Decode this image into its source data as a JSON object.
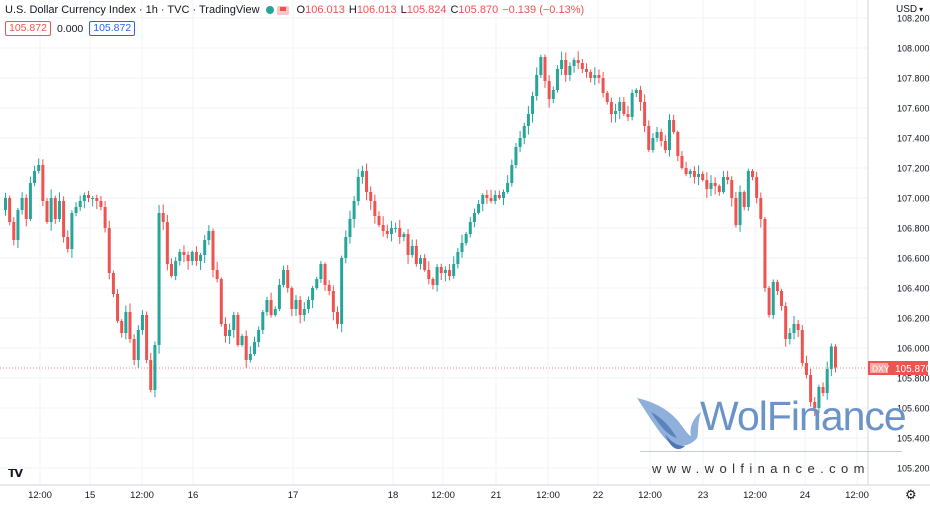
{
  "legend": {
    "title": "U.S. Dollar Currency Index · 1h · TVC · TradingView",
    "open_label": "O",
    "open": "106.013",
    "high_label": "H",
    "high": "106.013",
    "low_label": "L",
    "low": "105.824",
    "close_label": "C",
    "close": "105.870",
    "change": "−0.139 (−0.13%)"
  },
  "values_row": {
    "sell": "105.872",
    "spread": "0.000",
    "buy": "105.872"
  },
  "currency_unit": "USD",
  "price_tag": {
    "symbol": "DXY",
    "value": "105.870"
  },
  "watermark": {
    "brand": "WolFinance",
    "url": "www.wolfinance.com"
  },
  "colors": {
    "up": "#26a69a",
    "down": "#ef5350",
    "grid": "#f0f3fa",
    "axis_text": "#131722",
    "watermark": "#6b93c8"
  },
  "icons": [
    "tradingview-logo-icon",
    "gear-icon",
    "wolf-logo-icon"
  ],
  "chart_data": {
    "type": "candlestick",
    "interval": "1h",
    "y_axis": {
      "side": "right",
      "ticks": [
        "108.200",
        "108.000",
        "107.800",
        "107.600",
        "107.400",
        "107.200",
        "107.000",
        "106.800",
        "106.600",
        "106.400",
        "106.200",
        "106.000",
        "105.800",
        "105.600",
        "105.400",
        "105.200"
      ],
      "ylim": [
        105.2,
        108.2
      ]
    },
    "x_axis": {
      "ticks": [
        "12:00",
        "15",
        "12:00",
        "16",
        "17",
        "18",
        "12:00",
        "21",
        "12:00",
        "22",
        "12:00",
        "23",
        "12:00",
        "24",
        "12:00"
      ]
    },
    "last_price": 105.87,
    "closes": [
      107.0,
      106.84,
      106.72,
      106.92,
      107.0,
      106.86,
      107.1,
      107.18,
      107.22,
      106.98,
      106.84,
      107.0,
      106.86,
      106.98,
      106.74,
      106.66,
      106.9,
      106.94,
      106.98,
      107.02,
      107.0,
      107.0,
      106.98,
      106.94,
      106.8,
      106.5,
      106.36,
      106.18,
      106.1,
      106.24,
      106.06,
      105.92,
      106.12,
      106.22,
      105.92,
      105.72,
      106.02,
      106.9,
      106.84,
      106.56,
      106.48,
      106.58,
      106.64,
      106.62,
      106.58,
      106.64,
      106.58,
      106.62,
      106.72,
      106.78,
      106.52,
      106.46,
      106.16,
      106.08,
      106.12,
      106.22,
      106.02,
      106.08,
      105.92,
      105.96,
      106.04,
      106.12,
      106.24,
      106.32,
      106.22,
      106.26,
      106.42,
      106.52,
      106.4,
      106.26,
      106.32,
      106.22,
      106.26,
      106.32,
      106.4,
      106.46,
      106.56,
      106.42,
      106.38,
      106.24,
      106.16,
      106.6,
      106.74,
      106.86,
      106.98,
      107.14,
      107.18,
      107.04,
      106.98,
      106.88,
      106.82,
      106.78,
      106.76,
      106.8,
      106.8,
      106.74,
      106.76,
      106.62,
      106.68,
      106.56,
      106.6,
      106.52,
      106.46,
      106.42,
      106.54,
      106.5,
      106.52,
      106.48,
      106.56,
      106.64,
      106.7,
      106.76,
      106.84,
      106.9,
      106.96,
      107.02,
      107.0,
      106.98,
      107.02,
      107.0,
      107.04,
      107.1,
      107.22,
      107.34,
      107.4,
      107.48,
      107.56,
      107.68,
      107.82,
      107.94,
      107.78,
      107.66,
      107.72,
      107.86,
      107.92,
      107.82,
      107.88,
      107.92,
      107.9,
      107.86,
      107.84,
      107.8,
      107.82,
      107.8,
      107.7,
      107.64,
      107.56,
      107.58,
      107.64,
      107.56,
      107.54,
      107.7,
      107.72,
      107.64,
      107.48,
      107.32,
      107.4,
      107.44,
      107.38,
      107.32,
      107.52,
      107.44,
      107.28,
      107.2,
      107.16,
      107.18,
      107.14,
      107.16,
      107.12,
      107.06,
      107.1,
      107.08,
      107.04,
      107.14,
      107.12,
      107.0,
      106.82,
      107.04,
      106.94,
      107.18,
      107.14,
      107.0,
      106.86,
      106.4,
      106.22,
      106.44,
      106.38,
      106.28,
      106.06,
      106.1,
      106.16,
      106.12,
      105.9,
      105.82,
      105.64,
      105.6,
      105.74,
      105.7,
      105.86,
      106.01,
      105.87
    ]
  }
}
